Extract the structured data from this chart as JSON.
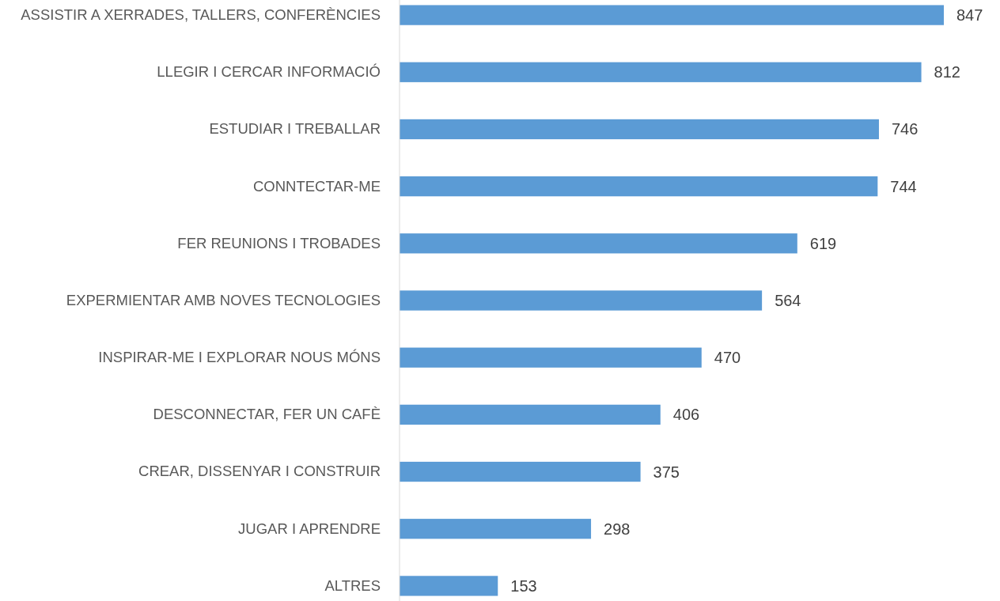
{
  "chart_data": {
    "type": "bar",
    "orientation": "horizontal",
    "categories": [
      "ASSISTIR A XERRADES, TALLERS, CONFERÈNCIES",
      "LLEGIR I CERCAR INFORMACIÓ",
      "ESTUDIAR I TREBALLAR",
      "CONNTECTAR-ME",
      "FER REUNIONS I TROBADES",
      "EXPERMIENTAR AMB NOVES TECNOLOGIES",
      "INSPIRAR-ME I EXPLORAR NOUS MÓNS",
      "DESCONNECTAR, FER UN CAFÈ",
      "CREAR, DISSENYAR I CONSTRUIR",
      "JUGAR I APRENDRE",
      "ALTRES"
    ],
    "values": [
      847,
      812,
      746,
      744,
      619,
      564,
      470,
      406,
      375,
      298,
      153
    ],
    "color": "#5b9bd5",
    "data_labels": true
  }
}
